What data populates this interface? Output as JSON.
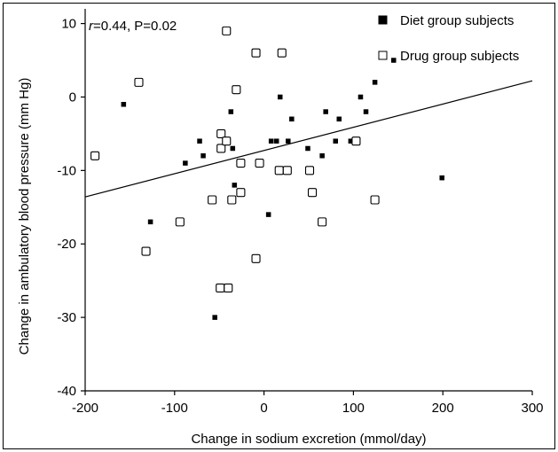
{
  "chart_data": {
    "type": "scatter",
    "title": "",
    "annotation": {
      "r_symbol": "r",
      "r_rest": "=0.44, P=0.02"
    },
    "xlabel": "Change in sodium excretion (mmol/day)",
    "ylabel": "Change in ambulatory blood pressure (mm Hg)",
    "xlim": [
      -200,
      300
    ],
    "ylim": [
      -40,
      12
    ],
    "x_ticks": [
      -200,
      -100,
      0,
      100,
      200,
      300
    ],
    "y_ticks": [
      -40,
      -30,
      -20,
      -10,
      0,
      10
    ],
    "legend": {
      "position": "top-right"
    },
    "regression_line": {
      "x": [
        -200,
        300
      ],
      "y": [
        -13.6,
        2.2
      ]
    },
    "series": [
      {
        "name": "Diet group subjects",
        "marker": "filled-square",
        "color": "#000000",
        "points": [
          {
            "x": -157,
            "y": -1
          },
          {
            "x": -127,
            "y": -17
          },
          {
            "x": -88,
            "y": -9
          },
          {
            "x": -72,
            "y": -6
          },
          {
            "x": -68,
            "y": -8
          },
          {
            "x": -55,
            "y": -30
          },
          {
            "x": -37,
            "y": -2
          },
          {
            "x": -35,
            "y": -7
          },
          {
            "x": -33,
            "y": -12
          },
          {
            "x": 5,
            "y": -16
          },
          {
            "x": 8,
            "y": -6
          },
          {
            "x": 14,
            "y": -6
          },
          {
            "x": 18,
            "y": 0
          },
          {
            "x": 27,
            "y": -6
          },
          {
            "x": 31,
            "y": -3
          },
          {
            "x": 49,
            "y": -7
          },
          {
            "x": 65,
            "y": -8
          },
          {
            "x": 69,
            "y": -2
          },
          {
            "x": 80,
            "y": -6
          },
          {
            "x": 84,
            "y": -3
          },
          {
            "x": 97,
            "y": -6
          },
          {
            "x": 108,
            "y": 0
          },
          {
            "x": 114,
            "y": -2
          },
          {
            "x": 124,
            "y": 2
          },
          {
            "x": 145,
            "y": 5
          },
          {
            "x": 199,
            "y": -11
          }
        ]
      },
      {
        "name": "Drug group subjects",
        "marker": "open-square",
        "color": "#000000",
        "points": [
          {
            "x": -189,
            "y": -8
          },
          {
            "x": -140,
            "y": 2
          },
          {
            "x": -132,
            "y": -21
          },
          {
            "x": -94,
            "y": -17
          },
          {
            "x": -58,
            "y": -14
          },
          {
            "x": -49,
            "y": -26
          },
          {
            "x": -48,
            "y": -5
          },
          {
            "x": -48,
            "y": -7
          },
          {
            "x": -42,
            "y": 9
          },
          {
            "x": -42,
            "y": -6
          },
          {
            "x": -40,
            "y": -26
          },
          {
            "x": -36,
            "y": -14
          },
          {
            "x": -31,
            "y": 1
          },
          {
            "x": -26,
            "y": -9
          },
          {
            "x": -26,
            "y": -13
          },
          {
            "x": -9,
            "y": 6
          },
          {
            "x": -9,
            "y": -22
          },
          {
            "x": -5,
            "y": -9
          },
          {
            "x": 17,
            "y": -10
          },
          {
            "x": 20,
            "y": 6
          },
          {
            "x": 26,
            "y": -10
          },
          {
            "x": 51,
            "y": -10
          },
          {
            "x": 54,
            "y": -13
          },
          {
            "x": 65,
            "y": -17
          },
          {
            "x": 103,
            "y": -6
          },
          {
            "x": 124,
            "y": -14
          }
        ]
      }
    ]
  }
}
